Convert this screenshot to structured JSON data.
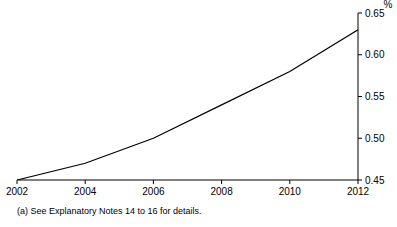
{
  "chart_data": {
    "type": "line",
    "y_label": "%",
    "footnote": "(a) See Explanatory Notes 14 to 16 for details.",
    "x": [
      2002,
      2004,
      2006,
      2008,
      2010,
      2012
    ],
    "series": [
      {
        "name": null,
        "color": "#000000",
        "values": [
          0.45,
          0.47,
          0.5,
          0.54,
          0.58,
          0.63
        ]
      }
    ],
    "xlim": [
      2002,
      2012
    ],
    "xticks": [
      2002,
      2004,
      2006,
      2008,
      2010,
      2012
    ],
    "ylim": [
      0.45,
      0.65
    ],
    "yticks": [
      0.45,
      {
        "value": 0.5,
        "label": "0.50"
      },
      0.55,
      {
        "value": 0.6,
        "label": "0.60"
      },
      0.65
    ],
    "grid": false
  }
}
